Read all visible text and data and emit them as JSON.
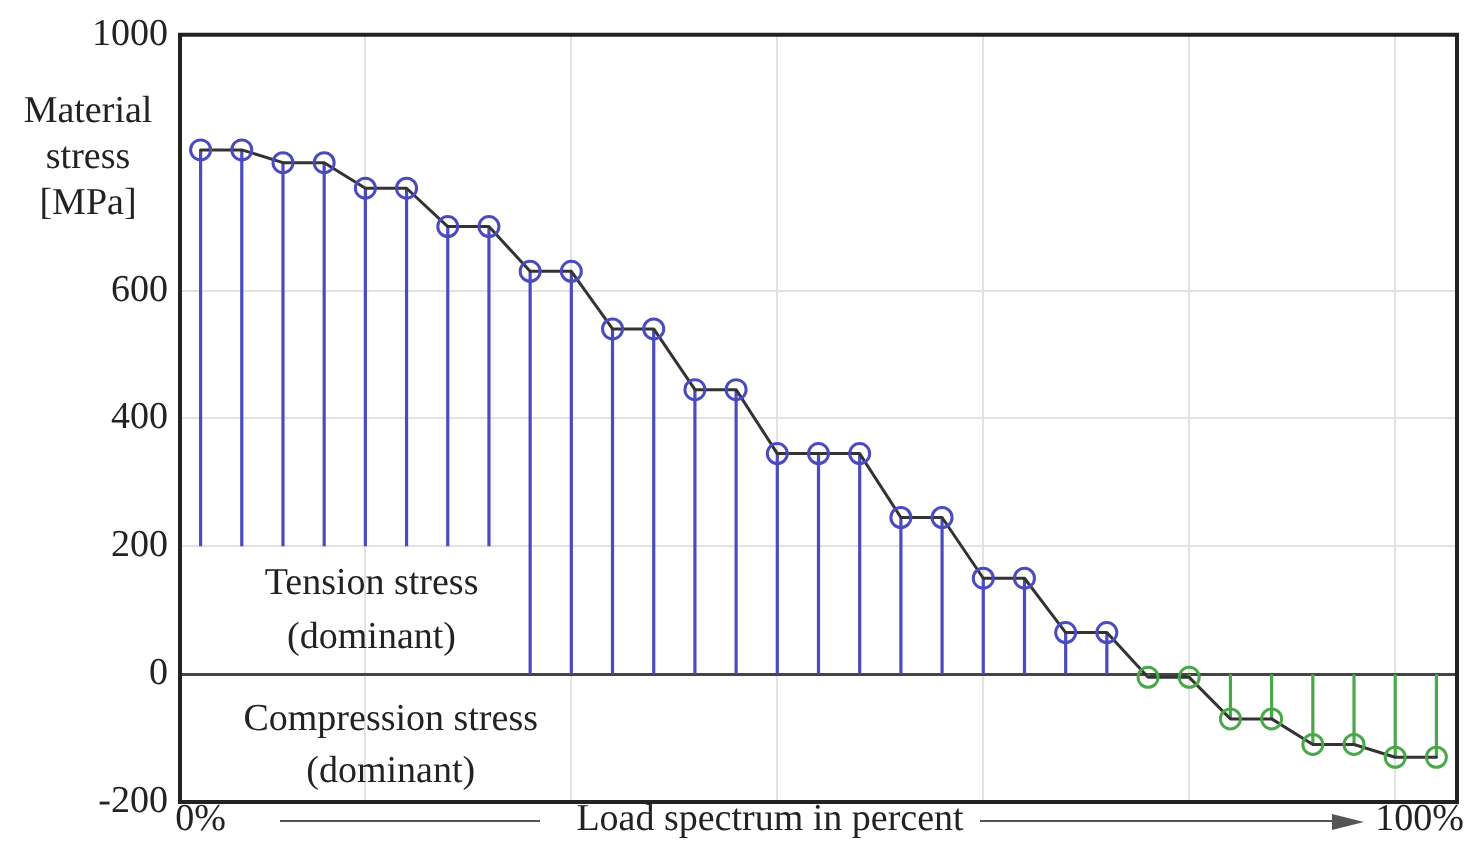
{
  "chart_data": {
    "type": "lollipop",
    "ylabel": "Material stress [MPa]",
    "xlabel": "Load spectrum in percent",
    "categories": [
      null,
      null,
      null,
      null,
      null,
      null,
      null,
      null,
      null,
      null,
      null,
      null,
      null,
      null,
      null,
      null,
      null,
      null,
      null,
      null,
      null,
      null,
      null,
      null,
      null,
      null,
      null,
      null,
      null,
      null,
      null
    ],
    "series": [
      {
        "type": "line",
        "color": "#333333",
        "marker": "none",
        "values": [
          820,
          820,
          800,
          800,
          760,
          760,
          700,
          700,
          630,
          630,
          540,
          540,
          445,
          445,
          345,
          345,
          345,
          245,
          245,
          150,
          150,
          65,
          65,
          -5,
          -5,
          -70,
          -70,
          -110,
          -110,
          -130,
          -130
        ]
      },
      {
        "type": "lollipop",
        "marker": "circle",
        "values": [
          820,
          820,
          800,
          800,
          760,
          760,
          700,
          700,
          630,
          630,
          540,
          540,
          445,
          445,
          345,
          345,
          345,
          245,
          245,
          150,
          150,
          65,
          65,
          -5,
          -5,
          -70,
          -70,
          -110,
          -110,
          -130,
          -130
        ],
        "colors": [
          "#4b4bc0",
          "#4b4bc0",
          "#4b4bc0",
          "#4b4bc0",
          "#4b4bc0",
          "#4b4bc0",
          "#4b4bc0",
          "#4b4bc0",
          "#4b4bc0",
          "#4b4bc0",
          "#4b4bc0",
          "#4b4bc0",
          "#4b4bc0",
          "#4b4bc0",
          "#4b4bc0",
          "#4b4bc0",
          "#4b4bc0",
          "#4b4bc0",
          "#4b4bc0",
          "#4b4bc0",
          "#4b4bc0",
          "#4b4bc0",
          "#4b4bc0",
          "#4aa84a",
          "#4aa84a",
          "#4aa84a",
          "#4aa84a",
          "#4aa84a",
          "#4aa84a",
          "#4aa84a",
          "#4aa84a"
        ]
      }
    ],
    "ylim": [
      -200,
      1000
    ],
    "yticks": [
      -200,
      0,
      200,
      400,
      600,
      1000
    ],
    "grid": true,
    "line_style": "solid",
    "annotations": [
      "Tension stress (dominant)",
      "Compression stress (dominant)",
      "0%",
      "100%"
    ]
  }
}
